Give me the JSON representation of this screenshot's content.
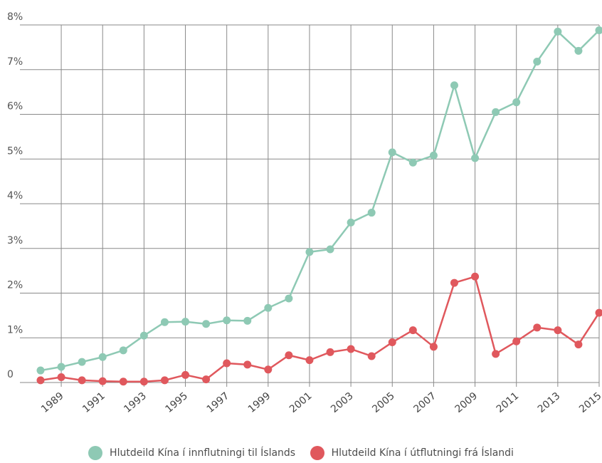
{
  "chart_data": {
    "type": "line",
    "x": [
      1988,
      1989,
      1990,
      1991,
      1992,
      1993,
      1994,
      1995,
      1996,
      1997,
      1998,
      1999,
      2000,
      2001,
      2002,
      2003,
      2004,
      2005,
      2006,
      2007,
      2008,
      2009,
      2010,
      2011,
      2012,
      2013,
      2014,
      2015
    ],
    "x_tick_labels": [
      "1989",
      "1991",
      "1993",
      "1995",
      "1997",
      "1999",
      "2001",
      "2003",
      "2005",
      "2007",
      "2009",
      "2011",
      "2013",
      "2015"
    ],
    "y_tick_labels": [
      "0",
      "1%",
      "2%",
      "3%",
      "4%",
      "5%",
      "6%",
      "7%",
      "8%"
    ],
    "ylim": [
      0,
      8
    ],
    "grid": true,
    "legend_position": "bottom-center",
    "series": [
      {
        "name": "Hlutdeild Kína í innflutningi til Íslands",
        "color": "#8ec9b4",
        "values": [
          0.27,
          0.35,
          0.46,
          0.57,
          0.72,
          1.05,
          1.35,
          1.36,
          1.31,
          1.39,
          1.38,
          1.67,
          1.88,
          2.92,
          2.98,
          3.58,
          3.8,
          5.15,
          4.92,
          5.08,
          6.65,
          5.02,
          6.05,
          6.27,
          7.18,
          7.85,
          7.42,
          7.88
        ]
      },
      {
        "name": "Hlutdeild Kína í útflutningi frá Íslandi",
        "color": "#e0585d",
        "values": [
          0.05,
          0.12,
          0.05,
          0.03,
          0.02,
          0.02,
          0.05,
          0.17,
          0.07,
          0.43,
          0.4,
          0.29,
          0.61,
          0.5,
          0.68,
          0.75,
          0.59,
          0.9,
          1.17,
          0.8,
          2.23,
          2.37,
          0.64,
          0.92,
          1.23,
          1.17,
          0.85,
          1.56
        ]
      }
    ]
  }
}
